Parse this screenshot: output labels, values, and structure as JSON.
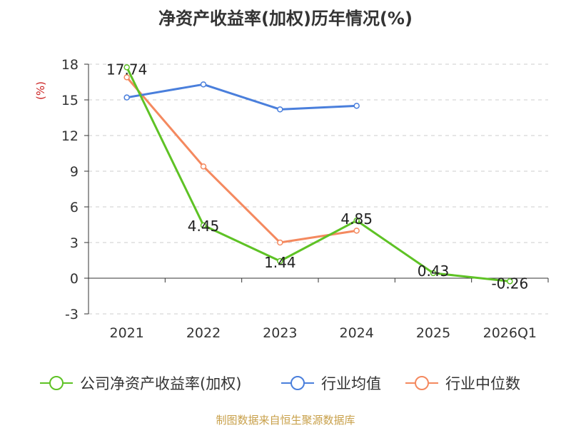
{
  "title": "净资产收益率(加权)历年情况(%)",
  "source": "制图数据来自恒生聚源数据库",
  "chart_data": {
    "type": "line",
    "categories": [
      "2021",
      "2022",
      "2023",
      "2024",
      "2025",
      "2026Q1"
    ],
    "ylabel": "(%)",
    "ylim": [
      -3,
      18
    ],
    "yticks": [
      -3,
      0,
      3,
      6,
      9,
      12,
      15,
      18
    ],
    "grid": true,
    "legend_position": "bottom",
    "series": [
      {
        "name": "公司净资产收益率(加权)",
        "color": "#5ec225",
        "values": [
          17.74,
          4.45,
          1.44,
          4.85,
          0.43,
          -0.26
        ],
        "labels": [
          "17.74",
          "4.45",
          "1.44",
          "4.85",
          "0.43",
          "-0.26"
        ]
      },
      {
        "name": "行业均值",
        "color": "#4a7fdc",
        "values": [
          15.2,
          16.3,
          14.2,
          14.5,
          null,
          null
        ]
      },
      {
        "name": "行业中位数",
        "color": "#f4895f",
        "values": [
          16.9,
          9.4,
          3.0,
          4.0,
          null,
          null
        ]
      }
    ]
  }
}
